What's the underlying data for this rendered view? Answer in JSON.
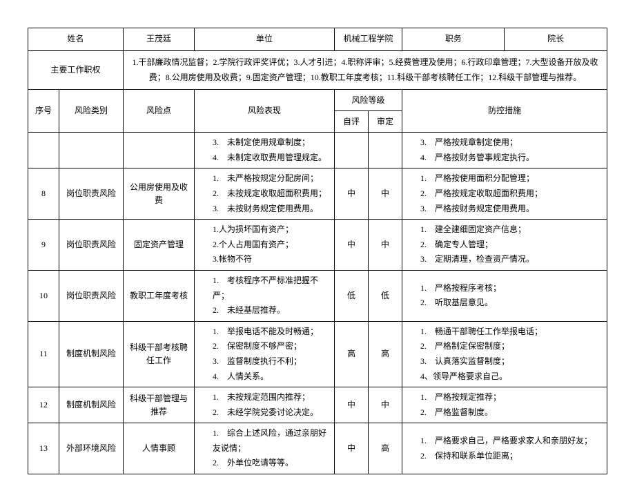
{
  "header": {
    "name_label": "姓名",
    "name_value": "王茂廷",
    "unit_label": "单位",
    "unit_value": "机械工程学院",
    "position_label": "职务",
    "position_value": "院长",
    "duties_label": "主要工作职权",
    "duties_value": "1.干部廉政情况监督；2.学院行政评奖评优；3.人才引进；4.职称评审；5.经费管理及使用；6.行政印章管理；7.大型设备开放及收费；8.公用房使用及收费；9.固定资产管理；10.教职工年度考核；11.科级干部考核聘任工作；12.科级干部管理与推荐。"
  },
  "columns": {
    "seq": "序号",
    "category": "风险类别",
    "point": "风险点",
    "performance": "风险表现",
    "level": "风险等级",
    "self": "自评",
    "review": "审定",
    "measures": "防控措施"
  },
  "rows": [
    {
      "seq": "",
      "category": "",
      "point": "",
      "performance": [
        "3.　未制定使用规章制度；",
        "4.　未制定收取费用管理规定。"
      ],
      "self": "",
      "review": "",
      "measures": [
        "3.　严格按规章制定使用；",
        "4.　严格按财务管事规定执行。"
      ]
    },
    {
      "seq": "8",
      "category": "岗位职责风险",
      "point": "公用房使用及收费",
      "performance": [
        "1.　未严格按规定分配房间；",
        "2.　未按规定收取超面积费用；",
        "3.　未按财务规定使用费用。"
      ],
      "self": "中",
      "review": "中",
      "measures": [
        "1.　严格按使用面积分配管理；",
        "2.　严格按规定收取超面积费用；",
        "3.　严格按财务规定使用费用。"
      ]
    },
    {
      "seq": "9",
      "category": "岗位职责风险",
      "point": "固定资产管理",
      "performance": [
        "1.人为损坏国有资产；",
        "2.个人占用国有资产；",
        "3.帐物不符"
      ],
      "self": "中",
      "review": "中",
      "measures": [
        "1.　建全建细固定资产信息；",
        "2.　确定专人管理；",
        "3.　定期清理，检查资产情况。"
      ]
    },
    {
      "seq": "10",
      "category": "岗位职责风险",
      "point": "教职工年度考核",
      "performance": [
        "1.　考核程序不严标准把握不严；",
        "2.　未经基层推荐。"
      ],
      "self": "低",
      "review": "低",
      "measures": [
        "1.　严格按程序考核；",
        "2.　听取基层意见。"
      ]
    },
    {
      "seq": "11",
      "category": "制度机制风险",
      "point": "科级干部考核聘任工作",
      "performance": [
        "1.　举报电话不能及时畅通；",
        "2.　保密制度不够严密；",
        "3.　监督制度执行不利；",
        "4.　人情关系。"
      ],
      "self": "高",
      "review": "高",
      "measures": [
        "1.　畅通干部聘任工作举报电话；",
        "2.　严格制定保密制度；",
        "3.　认真落实监督制度；",
        "4、领导严格要求自己。"
      ]
    },
    {
      "seq": "12",
      "category": "制度机制风险",
      "point": "科级干部管理与推荐",
      "performance": [
        "1.　未按规定范围内推荐；",
        "2.　未经学院党委讨论决定。"
      ],
      "self": "中",
      "review": "中",
      "measures": [
        "1.　严格按规定推荐；",
        "2.　严格监督制度。"
      ]
    },
    {
      "seq": "13",
      "category": "外部环境风险",
      "point": "人情事顾",
      "performance": [
        "1.　综合上述风险，通过亲朋好友说情；",
        "2.　外单位吃请等等。"
      ],
      "self": "中",
      "review": "高",
      "measures": [
        "1.　严格要求自己，严格要求家人和亲朋好友；",
        "2.　保持和联系单位距离；"
      ]
    }
  ]
}
